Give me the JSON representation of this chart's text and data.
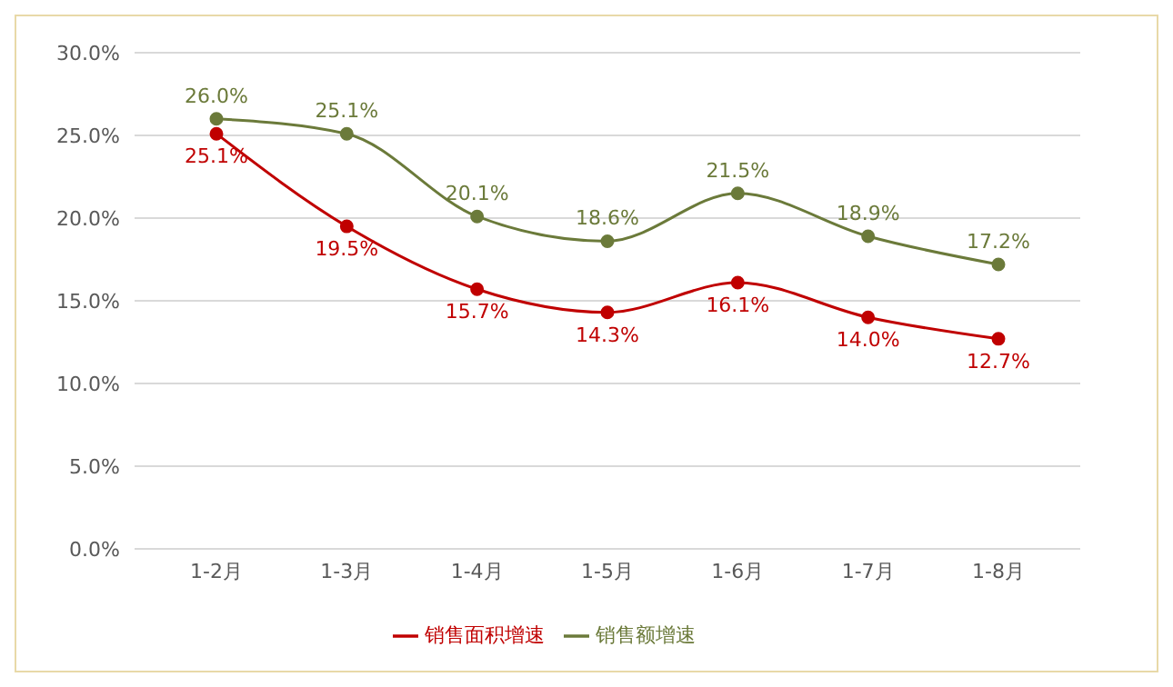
{
  "chart_data": {
    "type": "line",
    "categories": [
      "1-2月",
      "1-3月",
      "1-4月",
      "1-5月",
      "1-6月",
      "1-7月",
      "1-8月"
    ],
    "series": [
      {
        "name": "销售面积增速",
        "color": "#c00000",
        "values": [
          25.1,
          19.5,
          15.7,
          14.3,
          16.1,
          14.0,
          12.7
        ],
        "value_labels": [
          "25.1%",
          "19.5%",
          "15.7%",
          "14.3%",
          "16.1%",
          "14.0%",
          "12.7%"
        ]
      },
      {
        "name": "销售额增速",
        "color": "#6b7a3a",
        "values": [
          26.0,
          25.1,
          20.1,
          18.6,
          21.5,
          18.9,
          17.2
        ],
        "value_labels": [
          "26.0%",
          "25.1%",
          "20.1%",
          "18.6%",
          "21.5%",
          "18.9%",
          "17.2%"
        ]
      }
    ],
    "ylim": [
      0,
      30
    ],
    "yticks": [
      {
        "value": 0,
        "label": "0.0%"
      },
      {
        "value": 5,
        "label": "5.0%"
      },
      {
        "value": 10,
        "label": "10.0%"
      },
      {
        "value": 15,
        "label": "15.0%"
      },
      {
        "value": 20,
        "label": "20.0%"
      },
      {
        "value": 25,
        "label": "25.0%"
      },
      {
        "value": 30,
        "label": "30.0%"
      }
    ],
    "grid": "y",
    "legend": "bottom",
    "marker": "circle",
    "line_style": "solid"
  }
}
